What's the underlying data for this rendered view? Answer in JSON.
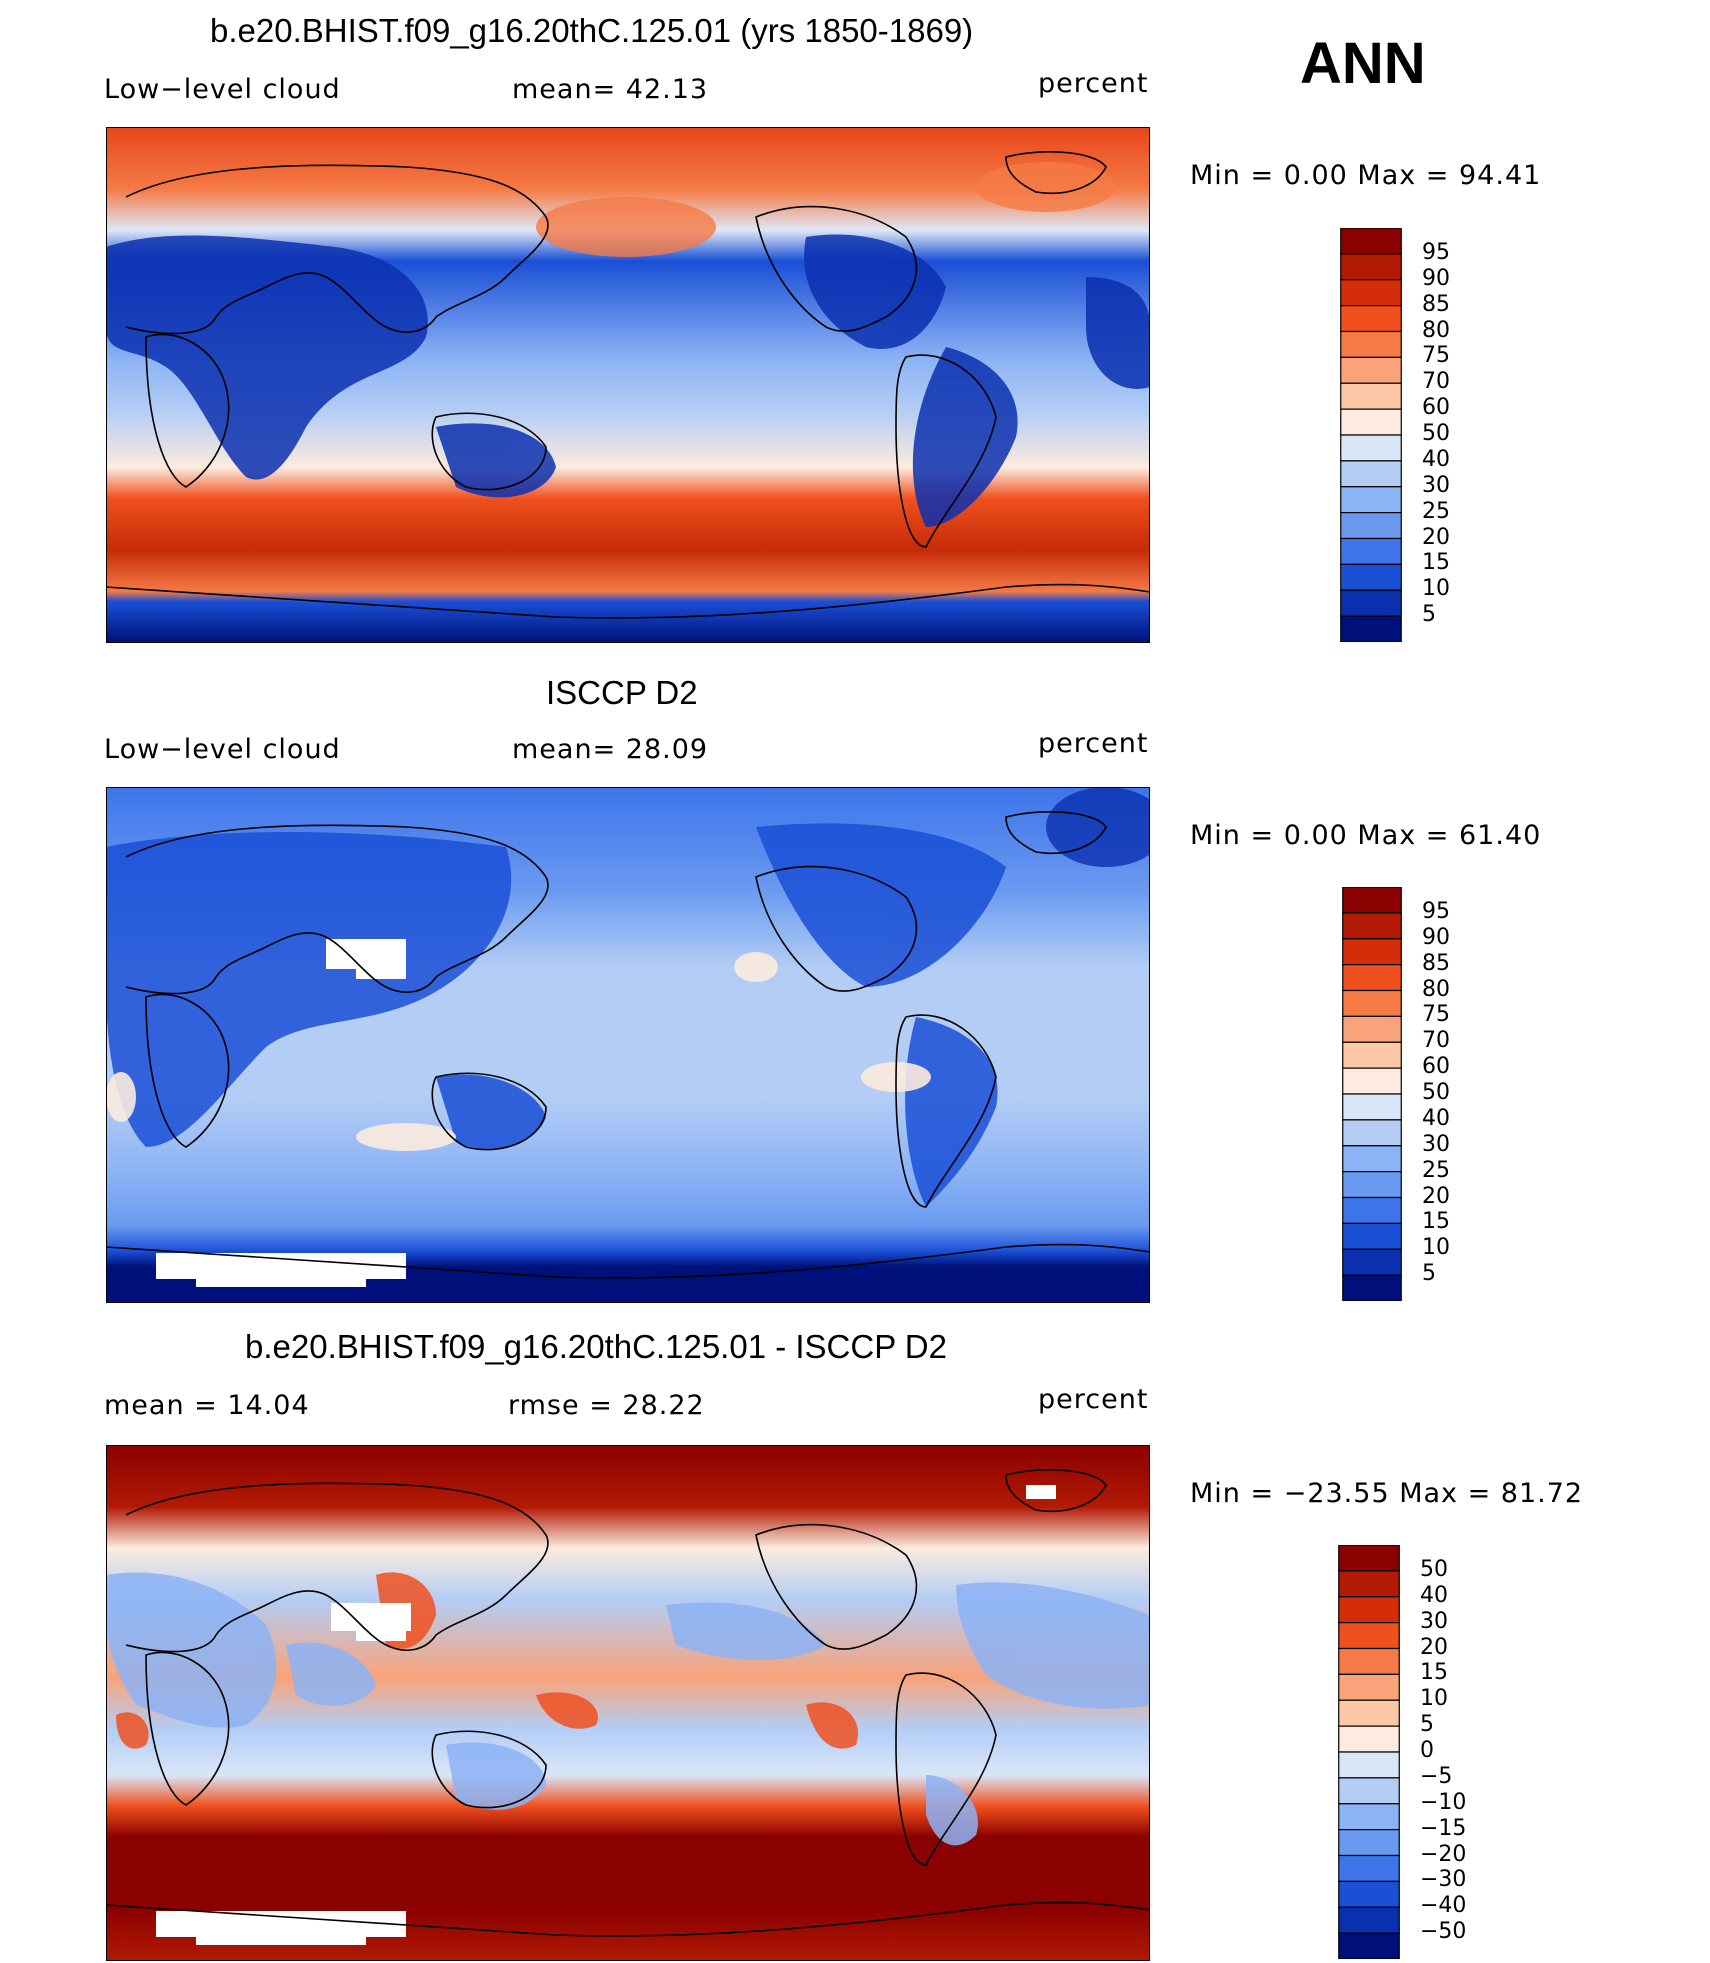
{
  "season": "ANN",
  "panels": [
    {
      "title": "b.e20.BHIST.f09_g16.20thC.125.01 (yrs 1850-1869)",
      "left_label": "Low−level cloud",
      "center_label": "mean=   42.13",
      "units": "percent",
      "minmax": "Min  =     0.00  Max  =    94.41"
    },
    {
      "title": "ISCCP D2",
      "left_label": "Low−level cloud",
      "center_label": "mean=   28.09",
      "units": "percent",
      "minmax": "Min  =     0.00  Max  =    61.40"
    },
    {
      "title": "b.e20.BHIST.f09_g16.20thC.125.01 - ISCCP D2",
      "left_label": "mean  =    14.04",
      "center_label": "rmse  =    28.22",
      "units": "percent",
      "minmax": "Min  = −23.55  Max  =    81.72"
    }
  ],
  "chart_data": [
    {
      "type": "heatmap",
      "title": "b.e20.BHIST.f09_g16.20thC.125.01 (yrs 1850-1869)",
      "variable": "Low−level cloud",
      "units": "percent",
      "mean": 42.13,
      "min": 0.0,
      "max": 94.41,
      "colorbar_levels": [
        "95",
        "90",
        "85",
        "80",
        "75",
        "70",
        "60",
        "50",
        "40",
        "30",
        "25",
        "20",
        "15",
        "10",
        "5"
      ],
      "colorbar_colors": [
        "#8b0000",
        "#b21a05",
        "#d42d0a",
        "#f0501e",
        "#f57a45",
        "#f9a37a",
        "#fdc8a8",
        "#fcebde",
        "#d9e6f8",
        "#b3cdf5",
        "#8cb3f5",
        "#6a9af0",
        "#3d74ea",
        "#1a4fd6",
        "#0a30b0",
        "#00107a"
      ]
    },
    {
      "type": "heatmap",
      "title": "ISCCP D2",
      "variable": "Low−level cloud",
      "units": "percent",
      "mean": 28.09,
      "min": 0.0,
      "max": 61.4,
      "colorbar_levels": [
        "95",
        "90",
        "85",
        "80",
        "75",
        "70",
        "60",
        "50",
        "40",
        "30",
        "25",
        "20",
        "15",
        "10",
        "5"
      ],
      "colorbar_colors": [
        "#8b0000",
        "#b21a05",
        "#d42d0a",
        "#f0501e",
        "#f57a45",
        "#f9a37a",
        "#fdc8a8",
        "#fcebde",
        "#d9e6f8",
        "#b3cdf5",
        "#8cb3f5",
        "#6a9af0",
        "#3d74ea",
        "#1a4fd6",
        "#0a30b0",
        "#00107a"
      ]
    },
    {
      "type": "heatmap",
      "title": "b.e20.BHIST.f09_g16.20thC.125.01 - ISCCP D2",
      "units": "percent",
      "mean": 14.04,
      "rmse": 28.22,
      "min": -23.55,
      "max": 81.72,
      "colorbar_levels": [
        "50",
        "40",
        "30",
        "20",
        "15",
        "10",
        "5",
        "0",
        "−5",
        "−10",
        "−15",
        "−20",
        "−30",
        "−40",
        "−50"
      ],
      "colorbar_colors": [
        "#8b0000",
        "#b21a05",
        "#d42d0a",
        "#f0501e",
        "#f57a45",
        "#f9a37a",
        "#fdc8a8",
        "#fcebde",
        "#d9e6f8",
        "#b3cdf5",
        "#8cb3f5",
        "#6a9af0",
        "#3d74ea",
        "#1a4fd6",
        "#0a30b0",
        "#00107a"
      ]
    }
  ]
}
